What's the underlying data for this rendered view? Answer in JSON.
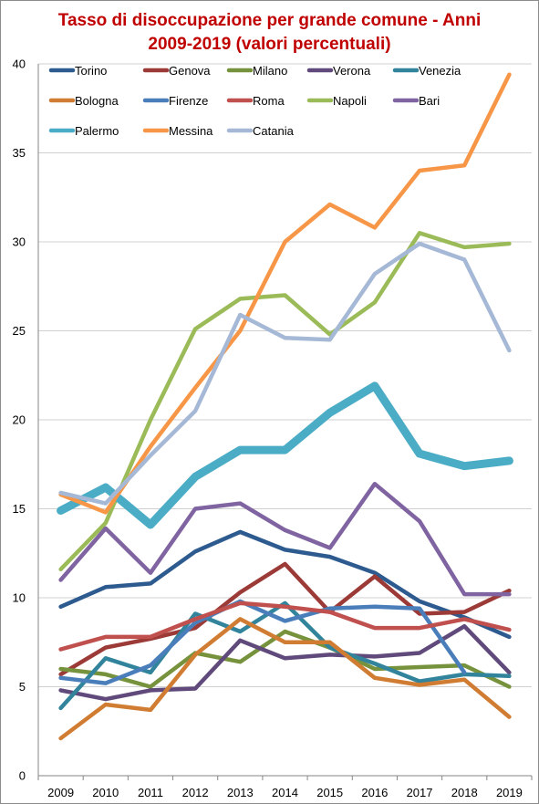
{
  "chart_data": {
    "type": "line",
    "title_line1": "Tasso di disoccupazione per grande comune - Anni",
    "title_line2": "2009-2019 (valori percentuali)",
    "x": [
      "2009",
      "2010",
      "2011",
      "2012",
      "2013",
      "2014",
      "2015",
      "2016",
      "2017",
      "2018",
      "2019"
    ],
    "ylim": [
      0,
      40
    ],
    "yticks": [
      "0",
      "5",
      "10",
      "15",
      "20",
      "25",
      "30",
      "35",
      "40"
    ],
    "grid": "horizontal",
    "legend_position": "top",
    "series": [
      {
        "name": "Torino",
        "color": "#2e5b8f",
        "values": [
          9.5,
          10.6,
          10.8,
          12.6,
          13.7,
          12.7,
          12.3,
          11.4,
          9.8,
          8.9,
          7.8
        ]
      },
      {
        "name": "Genova",
        "color": "#9b3a36",
        "values": [
          5.7,
          7.2,
          7.7,
          8.3,
          10.3,
          11.9,
          9.2,
          11.2,
          9.1,
          9.2,
          10.4
        ]
      },
      {
        "name": "Milano",
        "color": "#76923c",
        "values": [
          6.0,
          5.7,
          5.0,
          6.9,
          6.4,
          8.1,
          7.2,
          6.0,
          6.1,
          6.2,
          5.0
        ]
      },
      {
        "name": "Verona",
        "color": "#604a7b",
        "values": [
          4.8,
          4.3,
          4.8,
          4.9,
          7.6,
          6.6,
          6.8,
          6.7,
          6.9,
          8.4,
          5.8
        ]
      },
      {
        "name": "Venezia",
        "color": "#31849b",
        "values": [
          3.8,
          6.6,
          5.8,
          9.1,
          8.1,
          9.7,
          7.2,
          6.3,
          5.3,
          5.7,
          5.6
        ]
      },
      {
        "name": "Bologna",
        "color": "#d07c32",
        "values": [
          2.1,
          4.0,
          3.7,
          6.8,
          8.8,
          7.5,
          7.5,
          5.5,
          5.1,
          5.4,
          3.3
        ]
      },
      {
        "name": "Firenze",
        "color": "#4a7ebb",
        "values": [
          5.5,
          5.2,
          6.2,
          8.6,
          9.8,
          8.7,
          9.4,
          9.5,
          9.4,
          5.8,
          null
        ]
      },
      {
        "name": "Roma",
        "color": "#c0504d",
        "values": [
          7.1,
          7.8,
          7.8,
          8.8,
          9.7,
          9.5,
          9.2,
          8.3,
          8.3,
          8.8,
          8.2
        ]
      },
      {
        "name": "Napoli",
        "color": "#9bbb59",
        "values": [
          11.6,
          14.2,
          20.0,
          25.1,
          26.8,
          27.0,
          24.8,
          26.6,
          30.5,
          29.7,
          29.9
        ]
      },
      {
        "name": "Bari",
        "color": "#8064a2",
        "values": [
          11.0,
          13.9,
          11.4,
          15.0,
          15.3,
          13.8,
          12.8,
          16.4,
          14.3,
          10.2,
          10.2
        ]
      },
      {
        "name": "Palermo",
        "color": "#4bacc6",
        "values": [
          14.9,
          16.2,
          14.1,
          16.8,
          18.3,
          18.3,
          20.4,
          21.9,
          18.1,
          17.4,
          17.7
        ]
      },
      {
        "name": "Messina",
        "color": "#f79646",
        "values": [
          15.8,
          14.8,
          18.5,
          21.8,
          25.0,
          30.0,
          32.1,
          30.8,
          34.0,
          34.3,
          39.4
        ]
      },
      {
        "name": "Catania",
        "color": "#a5b8d6",
        "values": [
          15.9,
          15.3,
          18.0,
          20.5,
          25.9,
          24.6,
          24.5,
          28.2,
          29.9,
          29.0,
          23.9
        ]
      }
    ]
  }
}
